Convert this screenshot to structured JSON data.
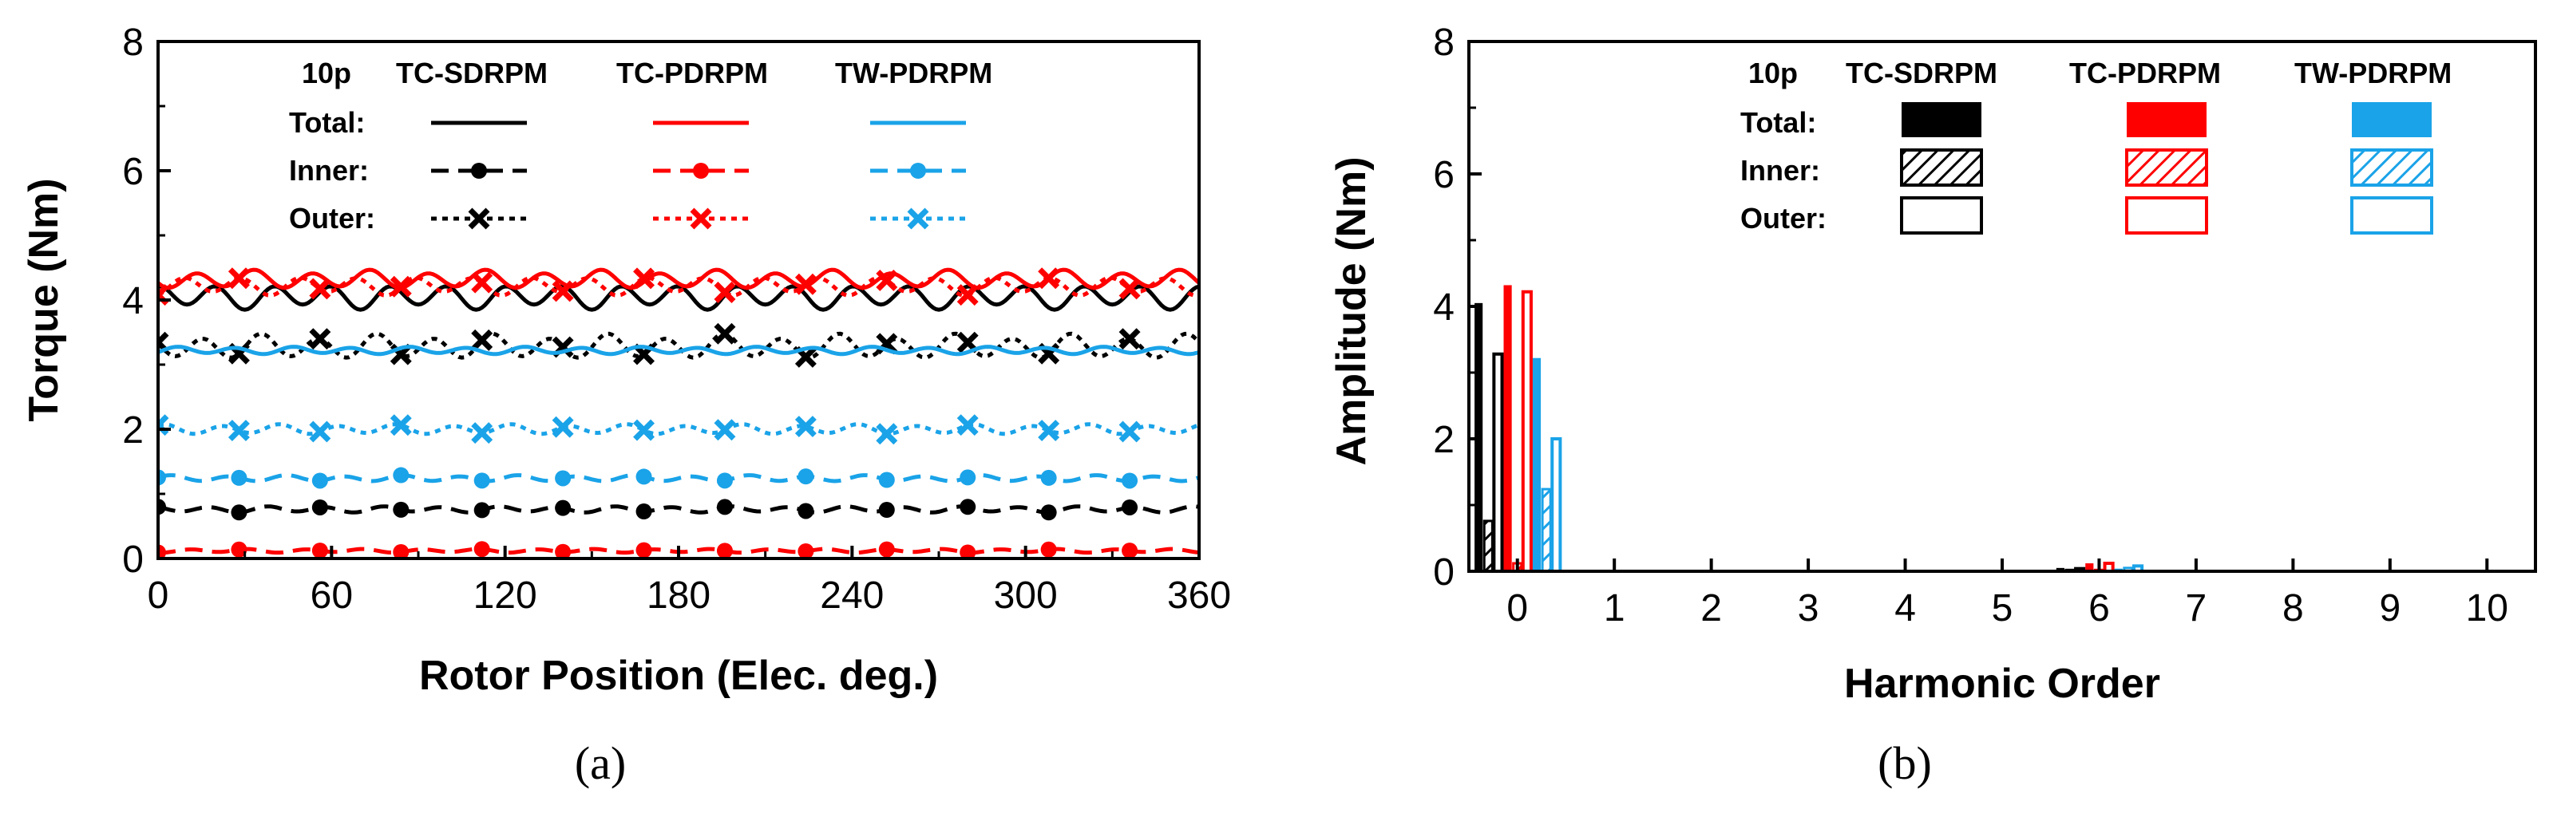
{
  "colors": {
    "tc_sdrpm": "#000000",
    "tc_pdrpm": "#ff0000",
    "tw_pdrpm": "#1aa3e8"
  },
  "chart_data": [
    {
      "type": "line",
      "panel_label": "(a)",
      "xlabel": "Rotor Position (Elec. deg.)",
      "ylabel": "Torque (Nm)",
      "xlim": [
        0,
        360
      ],
      "ylim": [
        0,
        8
      ],
      "xticks": [
        "0",
        "60",
        "120",
        "180",
        "240",
        "300",
        "360"
      ],
      "yticks": [
        "0",
        "2",
        "4",
        "6",
        "8"
      ],
      "legend": {
        "title": "10p",
        "columns": [
          "TC-SDRPM",
          "TC-PDRPM",
          "TW-PDRPM"
        ],
        "rows": [
          "Total:",
          "Inner:",
          "Outer:"
        ]
      },
      "x_period_note": "ripple period 20 elec. deg.",
      "series": [
        {
          "name": "TC-SDRPM Total",
          "color": "#000000",
          "style": "solid",
          "marker": "none",
          "mean": 4.05,
          "ripple": 0.2
        },
        {
          "name": "TC-SDRPM Inner",
          "color": "#000000",
          "style": "dash",
          "marker": "circle",
          "mean": 0.76,
          "ripple": 0.05
        },
        {
          "name": "TC-SDRPM Outer",
          "color": "#000000",
          "style": "dot",
          "marker": "x",
          "mean": 3.28,
          "ripple": 0.2
        },
        {
          "name": "TC-PDRPM Total",
          "color": "#ff0000",
          "style": "solid",
          "marker": "none",
          "mean": 4.32,
          "ripple": 0.15
        },
        {
          "name": "TC-PDRPM Inner",
          "color": "#ff0000",
          "style": "dash",
          "marker": "circle",
          "mean": 0.12,
          "ripple": 0.03
        },
        {
          "name": "TC-PDRPM Outer",
          "color": "#ff0000",
          "style": "dot",
          "marker": "x",
          "mean": 4.22,
          "ripple": 0.15
        },
        {
          "name": "TW-PDRPM Total",
          "color": "#1aa3e8",
          "style": "solid",
          "marker": "none",
          "mean": 3.22,
          "ripple": 0.06
        },
        {
          "name": "TW-PDRPM Inner",
          "color": "#1aa3e8",
          "style": "dash",
          "marker": "circle",
          "mean": 1.24,
          "ripple": 0.05
        },
        {
          "name": "TW-PDRPM Outer",
          "color": "#1aa3e8",
          "style": "dot",
          "marker": "x",
          "mean": 2.0,
          "ripple": 0.08
        }
      ]
    },
    {
      "type": "bar",
      "panel_label": "(b)",
      "xlabel": "Harmonic Order",
      "ylabel": "Amplitude (Nm)",
      "xlim": [
        -0.5,
        10.5
      ],
      "ylim": [
        0,
        8
      ],
      "categories": [
        "0",
        "1",
        "2",
        "3",
        "4",
        "5",
        "6",
        "7",
        "8",
        "9",
        "10"
      ],
      "yticks": [
        "0",
        "2",
        "4",
        "6",
        "8"
      ],
      "legend": {
        "title": "10p",
        "columns": [
          "TC-SDRPM",
          "TC-PDRPM",
          "TW-PDRPM"
        ],
        "rows": [
          "Total:",
          "Inner:",
          "Outer:"
        ]
      },
      "series": [
        {
          "name": "TC-SDRPM Total",
          "color": "#000000",
          "fill": "solid",
          "values": [
            4.05,
            0,
            0,
            0,
            0,
            0,
            0.05,
            0,
            0,
            0,
            0
          ]
        },
        {
          "name": "TC-SDRPM Inner",
          "color": "#000000",
          "fill": "hatched",
          "values": [
            0.76,
            0,
            0,
            0,
            0,
            0,
            0.02,
            0,
            0,
            0,
            0
          ]
        },
        {
          "name": "TC-SDRPM Outer",
          "color": "#000000",
          "fill": "hollow",
          "values": [
            3.28,
            0,
            0,
            0,
            0,
            0,
            0.04,
            0,
            0,
            0,
            0
          ]
        },
        {
          "name": "TC-PDRPM Total",
          "color": "#ff0000",
          "fill": "solid",
          "values": [
            4.32,
            0,
            0,
            0,
            0,
            0,
            0.12,
            0,
            0,
            0,
            0
          ]
        },
        {
          "name": "TC-PDRPM Inner",
          "color": "#ff0000",
          "fill": "hatched",
          "values": [
            0.12,
            0,
            0,
            0,
            0,
            0,
            0.02,
            0,
            0,
            0,
            0
          ]
        },
        {
          "name": "TC-PDRPM Outer",
          "color": "#ff0000",
          "fill": "hollow",
          "values": [
            4.22,
            0,
            0,
            0,
            0,
            0,
            0.12,
            0,
            0,
            0,
            0
          ]
        },
        {
          "name": "TW-PDRPM Total",
          "color": "#1aa3e8",
          "fill": "solid",
          "values": [
            3.22,
            0,
            0,
            0,
            0,
            0,
            0.04,
            0,
            0,
            0,
            0
          ]
        },
        {
          "name": "TW-PDRPM Inner",
          "color": "#1aa3e8",
          "fill": "hatched",
          "values": [
            1.24,
            0,
            0,
            0,
            0,
            0,
            0.05,
            0,
            0,
            0,
            0
          ]
        },
        {
          "name": "TW-PDRPM Outer",
          "color": "#1aa3e8",
          "fill": "hollow",
          "values": [
            2.0,
            0,
            0,
            0,
            0,
            0,
            0.08,
            0,
            0,
            0,
            0
          ]
        }
      ]
    }
  ]
}
